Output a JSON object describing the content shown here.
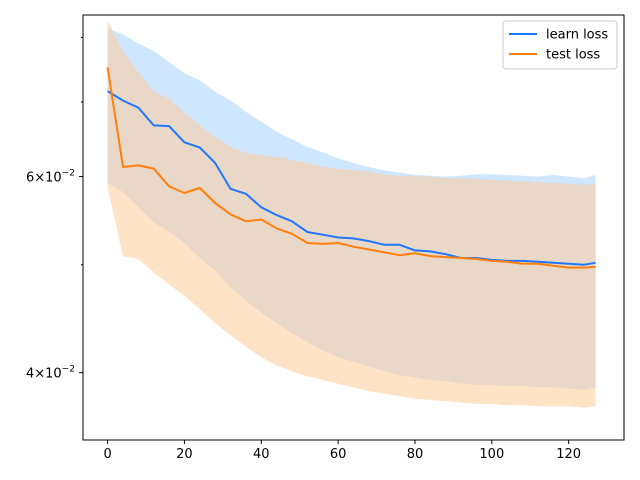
{
  "chart_data": {
    "type": "line",
    "title": "",
    "xlabel": "",
    "ylabel": "",
    "xscale": "linear",
    "yscale": "log",
    "xlim": [
      -6.4,
      134.4
    ],
    "ylim": [
      0.0348,
      0.0838
    ],
    "grid": false,
    "legend_position": "top-right",
    "x_ticks": [
      {
        "value": 0,
        "label": "0"
      },
      {
        "value": 20,
        "label": "20"
      },
      {
        "value": 40,
        "label": "40"
      },
      {
        "value": 60,
        "label": "60"
      },
      {
        "value": 80,
        "label": "80"
      },
      {
        "value": 100,
        "label": "100"
      },
      {
        "value": 120,
        "label": "120"
      }
    ],
    "y_major_ticks": [
      {
        "value": 0.04,
        "label_base": "4",
        "label_exp": "−2"
      },
      {
        "value": 0.06,
        "label_base": "6",
        "label_exp": "−2"
      }
    ],
    "y_label_times": "×10",
    "y_minor_ticks": [
      0.05,
      0.07,
      0.08
    ],
    "x": [
      0,
      4,
      8,
      12,
      16,
      20,
      24,
      28,
      32,
      36,
      40,
      44,
      48,
      52,
      56,
      60,
      64,
      68,
      72,
      76,
      80,
      84,
      88,
      92,
      96,
      100,
      104,
      108,
      112,
      116,
      120,
      124,
      127
    ],
    "series": [
      {
        "name": "learn loss",
        "color": "#1f77ff",
        "band_color": "#a8d2ff",
        "band_opacity": 0.55,
        "values": [
          0.0716,
          0.0702,
          0.0692,
          0.0667,
          0.0666,
          0.0644,
          0.0637,
          0.0617,
          0.0585,
          0.0579,
          0.0563,
          0.0554,
          0.0547,
          0.0535,
          0.0532,
          0.0529,
          0.0528,
          0.0525,
          0.0521,
          0.0521,
          0.0515,
          0.0514,
          0.0511,
          0.0507,
          0.0507,
          0.0505,
          0.0504,
          0.0504,
          0.0503,
          0.0502,
          0.0501,
          0.05,
          0.0502
        ],
        "upper": [
          0.0815,
          0.0805,
          0.079,
          0.0778,
          0.076,
          0.0743,
          0.0732,
          0.0715,
          0.0702,
          0.0686,
          0.0672,
          0.0658,
          0.0648,
          0.0638,
          0.0631,
          0.0623,
          0.0617,
          0.0612,
          0.0608,
          0.0605,
          0.0602,
          0.0601,
          0.06,
          0.0601,
          0.0603,
          0.0603,
          0.0602,
          0.0601,
          0.06,
          0.0602,
          0.06,
          0.0598,
          0.0602
        ],
        "lower": [
          0.0592,
          0.0581,
          0.0563,
          0.0546,
          0.0535,
          0.0523,
          0.0507,
          0.0494,
          0.0477,
          0.0464,
          0.0453,
          0.0443,
          0.0434,
          0.0426,
          0.0419,
          0.0413,
          0.0409,
          0.0405,
          0.0401,
          0.0398,
          0.0396,
          0.0394,
          0.0393,
          0.0391,
          0.039,
          0.039,
          0.0389,
          0.0389,
          0.0388,
          0.0388,
          0.0387,
          0.0386,
          0.0388
        ]
      },
      {
        "name": "test loss",
        "color": "#ff7f0e",
        "band_color": "#ffcc99",
        "band_opacity": 0.55,
        "values": [
          0.0752,
          0.0612,
          0.0614,
          0.061,
          0.0588,
          0.058,
          0.0586,
          0.0568,
          0.0555,
          0.0547,
          0.0549,
          0.0539,
          0.0533,
          0.0523,
          0.0522,
          0.0523,
          0.0519,
          0.0516,
          0.0513,
          0.051,
          0.0512,
          0.0509,
          0.0508,
          0.0507,
          0.0506,
          0.0504,
          0.0503,
          0.0501,
          0.0501,
          0.0499,
          0.0497,
          0.0497,
          0.0498
        ],
        "upper": [
          0.0828,
          0.0778,
          0.0745,
          0.0715,
          0.0705,
          0.0685,
          0.0667,
          0.0651,
          0.0638,
          0.063,
          0.0627,
          0.0625,
          0.0621,
          0.0617,
          0.0612,
          0.061,
          0.0608,
          0.0606,
          0.0603,
          0.0601,
          0.0601,
          0.06,
          0.0598,
          0.0598,
          0.0597,
          0.0596,
          0.0595,
          0.0594,
          0.0593,
          0.0592,
          0.0591,
          0.059,
          0.0591
        ],
        "lower": [
          0.0587,
          0.0509,
          0.0506,
          0.0492,
          0.048,
          0.0469,
          0.0456,
          0.0443,
          0.0432,
          0.0422,
          0.0413,
          0.0406,
          0.0401,
          0.0397,
          0.0394,
          0.0391,
          0.0388,
          0.0385,
          0.0383,
          0.0381,
          0.0379,
          0.0378,
          0.0377,
          0.0376,
          0.0375,
          0.0375,
          0.0374,
          0.0374,
          0.0373,
          0.0373,
          0.0373,
          0.0372,
          0.0373
        ]
      }
    ]
  }
}
